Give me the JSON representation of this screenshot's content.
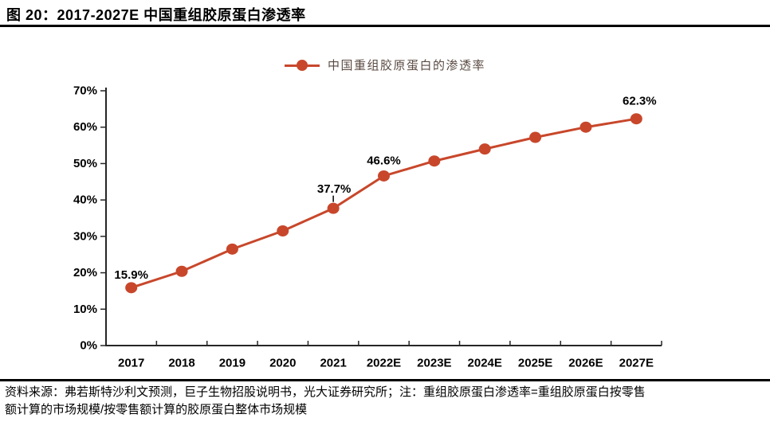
{
  "figure": {
    "title": "图 20：2017-2027E 中国重组胶原蛋白渗透率",
    "source_line1": "资料来源：弗若斯特沙利文预测，巨子生物招股说明书，光大证券研究所；注：重组胶原蛋白渗透率=重组胶原蛋白按零售",
    "source_line2": "额计算的市场规模/按零售额计算的胶原蛋白整体市场规模"
  },
  "legend": {
    "label": "中国重组胶原蛋白的渗透率",
    "marker": "circle-on-line"
  },
  "colors": {
    "series": "#C8472B",
    "axis": "#262626",
    "tick_text": "#000000",
    "legend_text": "#5a4a42",
    "divider": "#000000"
  },
  "chart_data": {
    "type": "line",
    "title": "图 20：2017-2027E 中国重组胶原蛋白渗透率",
    "categories": [
      "2017",
      "2018",
      "2019",
      "2020",
      "2021",
      "2022E",
      "2023E",
      "2024E",
      "2025E",
      "2026E",
      "2027E"
    ],
    "series": [
      {
        "name": "中国重组胶原蛋白的渗透率",
        "values": [
          15.9,
          20.4,
          26.5,
          31.5,
          37.7,
          46.6,
          50.7,
          54.0,
          57.2,
          60.0,
          62.3
        ]
      }
    ],
    "point_labels": [
      {
        "index": 0,
        "text": "15.9%",
        "leader": false
      },
      {
        "index": 4,
        "text": "37.7%",
        "leader": true
      },
      {
        "index": 5,
        "text": "46.6%",
        "leader": false
      },
      {
        "index": 10,
        "text": "62.3%",
        "leader": false
      }
    ],
    "xlabel": "",
    "ylabel": "",
    "ylim": [
      0,
      70
    ],
    "ytick_step": 10,
    "ytick_labels": [
      "0%",
      "10%",
      "20%",
      "30%",
      "40%",
      "50%",
      "60%",
      "70%"
    ],
    "grid": false,
    "legend_position": "top-center",
    "marker_style": "filled-circle"
  }
}
